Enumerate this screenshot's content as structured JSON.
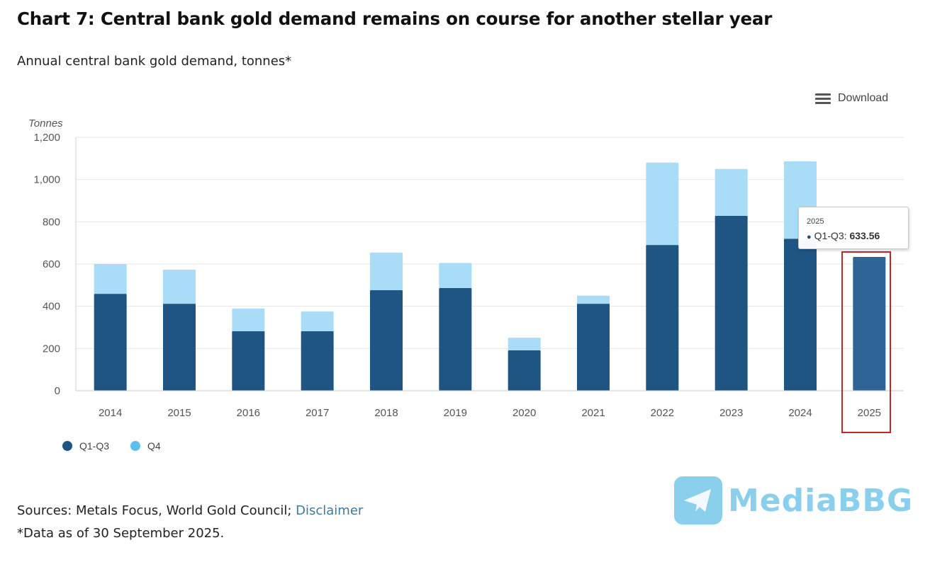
{
  "header": {
    "title": "Chart 7: Central bank gold demand remains on course for another stellar year",
    "subtitle": "Annual central bank gold demand, tonnes*"
  },
  "toolbar": {
    "download_label": "Download",
    "download_icon": "hamburger-menu-icon"
  },
  "chart_data": {
    "type": "bar",
    "stacked": true,
    "title": "Annual central bank gold demand, tonnes*",
    "xlabel": "",
    "ylabel": "Tonnes",
    "ylim": [
      0,
      1200
    ],
    "yticks": [
      0,
      200,
      400,
      600,
      800,
      1000,
      1200
    ],
    "ytick_labels": [
      "0",
      "200",
      "400",
      "600",
      "800",
      "1,000",
      "1,200"
    ],
    "grid": true,
    "legend_position": "bottom-left",
    "categories": [
      "2014",
      "2015",
      "2016",
      "2017",
      "2018",
      "2019",
      "2020",
      "2021",
      "2022",
      "2023",
      "2024",
      "2025"
    ],
    "series": [
      {
        "name": "Q1-Q3",
        "color": "#1f5583",
        "values": [
          459,
          412,
          282,
          282,
          476,
          486,
          191,
          412,
          690,
          828,
          720,
          633.56
        ]
      },
      {
        "name": "Q4",
        "color": "#a8dcf7",
        "values": [
          141,
          161,
          107,
          93,
          178,
          119,
          60,
          38,
          390,
          222,
          366,
          null
        ]
      }
    ],
    "highlighted_category": "2025",
    "highlight_color": "#c0272d",
    "tooltip": {
      "category": "2025",
      "series": "Q1-Q3",
      "value_label": "633.56"
    }
  },
  "legend": {
    "items": [
      {
        "label": "Q1-Q3",
        "color": "#1f5583"
      },
      {
        "label": "Q4",
        "color": "#5bc0eb"
      }
    ]
  },
  "tooltip": {
    "heading": "2025",
    "series_label": "Q1-Q3:",
    "value": "633.56"
  },
  "footer": {
    "sources_prefix": "Sources: Metals Focus, World Gold Council; ",
    "disclaimer_link": "Disclaimer",
    "note": "*Data as of 30 September 2025."
  },
  "watermark": {
    "text": "MediaBBG",
    "icon": "telegram-paper-plane-icon"
  }
}
